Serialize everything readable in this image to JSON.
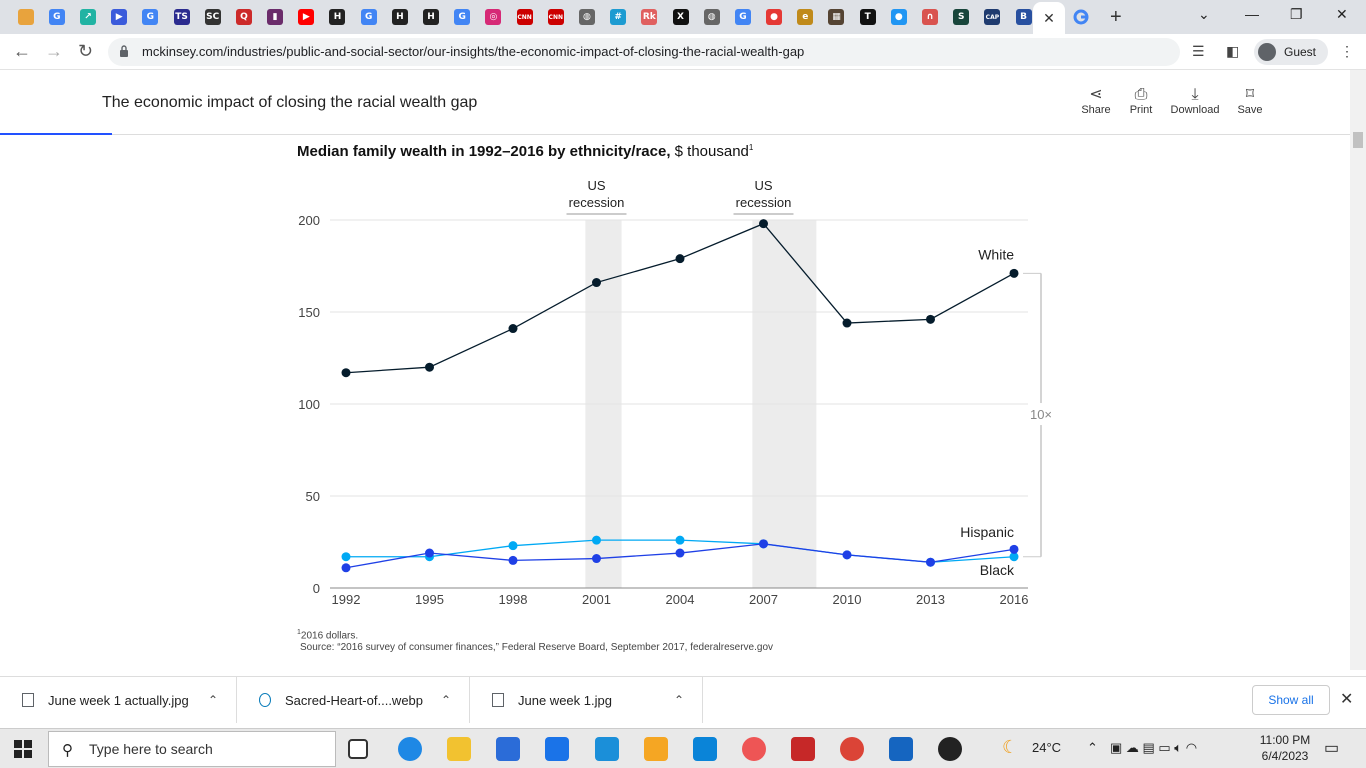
{
  "browser": {
    "url": "mckinsey.com/industries/public-and-social-sector/our-insights/the-economic-impact-of-closing-the-racial-wealth-gap",
    "profile_label": "Guest",
    "tab_favicons": [
      {
        "name": "cloud-favicon",
        "color": "#e8a33d",
        "label": ""
      },
      {
        "name": "google-favicon",
        "color": "#4285f4",
        "label": "G"
      },
      {
        "name": "arrow-favicon",
        "color": "#21b3a3",
        "label": "↗"
      },
      {
        "name": "play-favicon",
        "color": "#3b5bdb",
        "label": "▶"
      },
      {
        "name": "google-favicon",
        "color": "#4285f4",
        "label": "G"
      },
      {
        "name": "ts-favicon",
        "color": "#2b2b8f",
        "label": "TS"
      },
      {
        "name": "sc-favicon",
        "color": "#333333",
        "label": "SC"
      },
      {
        "name": "q-favicon",
        "color": "#cc2a2a",
        "label": "Q"
      },
      {
        "name": "purple-favicon",
        "color": "#6b2c6b",
        "label": "▮"
      },
      {
        "name": "youtube-favicon",
        "color": "#ff0000",
        "label": "▶"
      },
      {
        "name": "h-favicon",
        "color": "#222222",
        "label": "H"
      },
      {
        "name": "google-favicon",
        "color": "#4285f4",
        "label": "G"
      },
      {
        "name": "h-favicon",
        "color": "#222222",
        "label": "H"
      },
      {
        "name": "h-favicon",
        "color": "#222222",
        "label": "H"
      },
      {
        "name": "google-favicon",
        "color": "#4285f4",
        "label": "G"
      },
      {
        "name": "instagram-favicon",
        "color": "#d62976",
        "label": "◎"
      },
      {
        "name": "cnn-favicon",
        "color": "#cc0000",
        "label": "CNN"
      },
      {
        "name": "cnn-favicon",
        "color": "#cc0000",
        "label": "CNN"
      },
      {
        "name": "globe-favicon",
        "color": "#666666",
        "label": "◍"
      },
      {
        "name": "hash-favicon",
        "color": "#1d9bd1",
        "label": "#"
      },
      {
        "name": "rk-favicon",
        "color": "#e06060",
        "label": "Rk"
      },
      {
        "name": "x-favicon",
        "color": "#111111",
        "label": "X"
      },
      {
        "name": "globe-favicon",
        "color": "#666666",
        "label": "◍"
      },
      {
        "name": "google-favicon",
        "color": "#4285f4",
        "label": "G"
      },
      {
        "name": "red-circle-favicon",
        "color": "#e53935",
        "label": "●"
      },
      {
        "name": "e-favicon",
        "color": "#c08a1a",
        "label": "e"
      },
      {
        "name": "photo-favicon",
        "color": "#554433",
        "label": "▦"
      },
      {
        "name": "nyt-favicon",
        "color": "#111111",
        "label": "T"
      },
      {
        "name": "blue-circle-favicon",
        "color": "#2196f3",
        "label": "●"
      },
      {
        "name": "curve-favicon",
        "color": "#d9534f",
        "label": "∩"
      },
      {
        "name": "msu-favicon",
        "color": "#18453b",
        "label": "S"
      },
      {
        "name": "cap-favicon",
        "color": "#1f3b6f",
        "label": "CAP"
      },
      {
        "name": "b-favicon",
        "color": "#2850a0",
        "label": "B"
      }
    ]
  },
  "article": {
    "title": "The economic impact of closing the racial wealth gap",
    "actions": [
      "Share",
      "Print",
      "Download",
      "Save"
    ]
  },
  "chart_data": {
    "type": "line",
    "title_bold": "Median family wealth in 1992–2016 by ethnicity/race,",
    "title_rest": " $ thousand",
    "title_sup": "1",
    "x": [
      1992,
      1995,
      1998,
      2001,
      2004,
      2007,
      2010,
      2013,
      2016
    ],
    "ylim": [
      0,
      200
    ],
    "yticks": [
      0,
      50,
      100,
      150,
      200
    ],
    "series": [
      {
        "name": "White",
        "color": "#051c2c",
        "values": [
          117,
          120,
          141,
          166,
          179,
          198,
          144,
          146,
          171
        ]
      },
      {
        "name": "Hispanic",
        "color": "#00a9f4",
        "values": [
          17,
          17,
          23,
          26,
          26,
          24,
          18,
          14,
          17
        ]
      },
      {
        "name": "Black",
        "color": "#1f40e6",
        "values": [
          11,
          19,
          15,
          16,
          19,
          24,
          18,
          14,
          21
        ]
      }
    ],
    "recessions": [
      {
        "label_line1": "US",
        "label_line2": "recession",
        "x_start": 2000.6,
        "x_end": 2001.9
      },
      {
        "label_line1": "US",
        "label_line2": "recession",
        "x_start": 2006.6,
        "x_end": 2008.9
      }
    ],
    "gap_label": "10×",
    "footnote": "2016 dollars.",
    "footnote_marker": "1",
    "source": "Source: “2016 survey of consumer finances,” Federal Reserve Board, September 2017, federalreserve.gov"
  },
  "downloads": {
    "items": [
      "June week 1 actually.jpg",
      "Sacred-Heart-of....webp",
      "June week 1.jpg"
    ],
    "show_all": "Show all"
  },
  "taskbar": {
    "search_placeholder": "Type here to search",
    "temperature": "24°C",
    "time": "11:00 PM",
    "date": "6/4/2023"
  }
}
